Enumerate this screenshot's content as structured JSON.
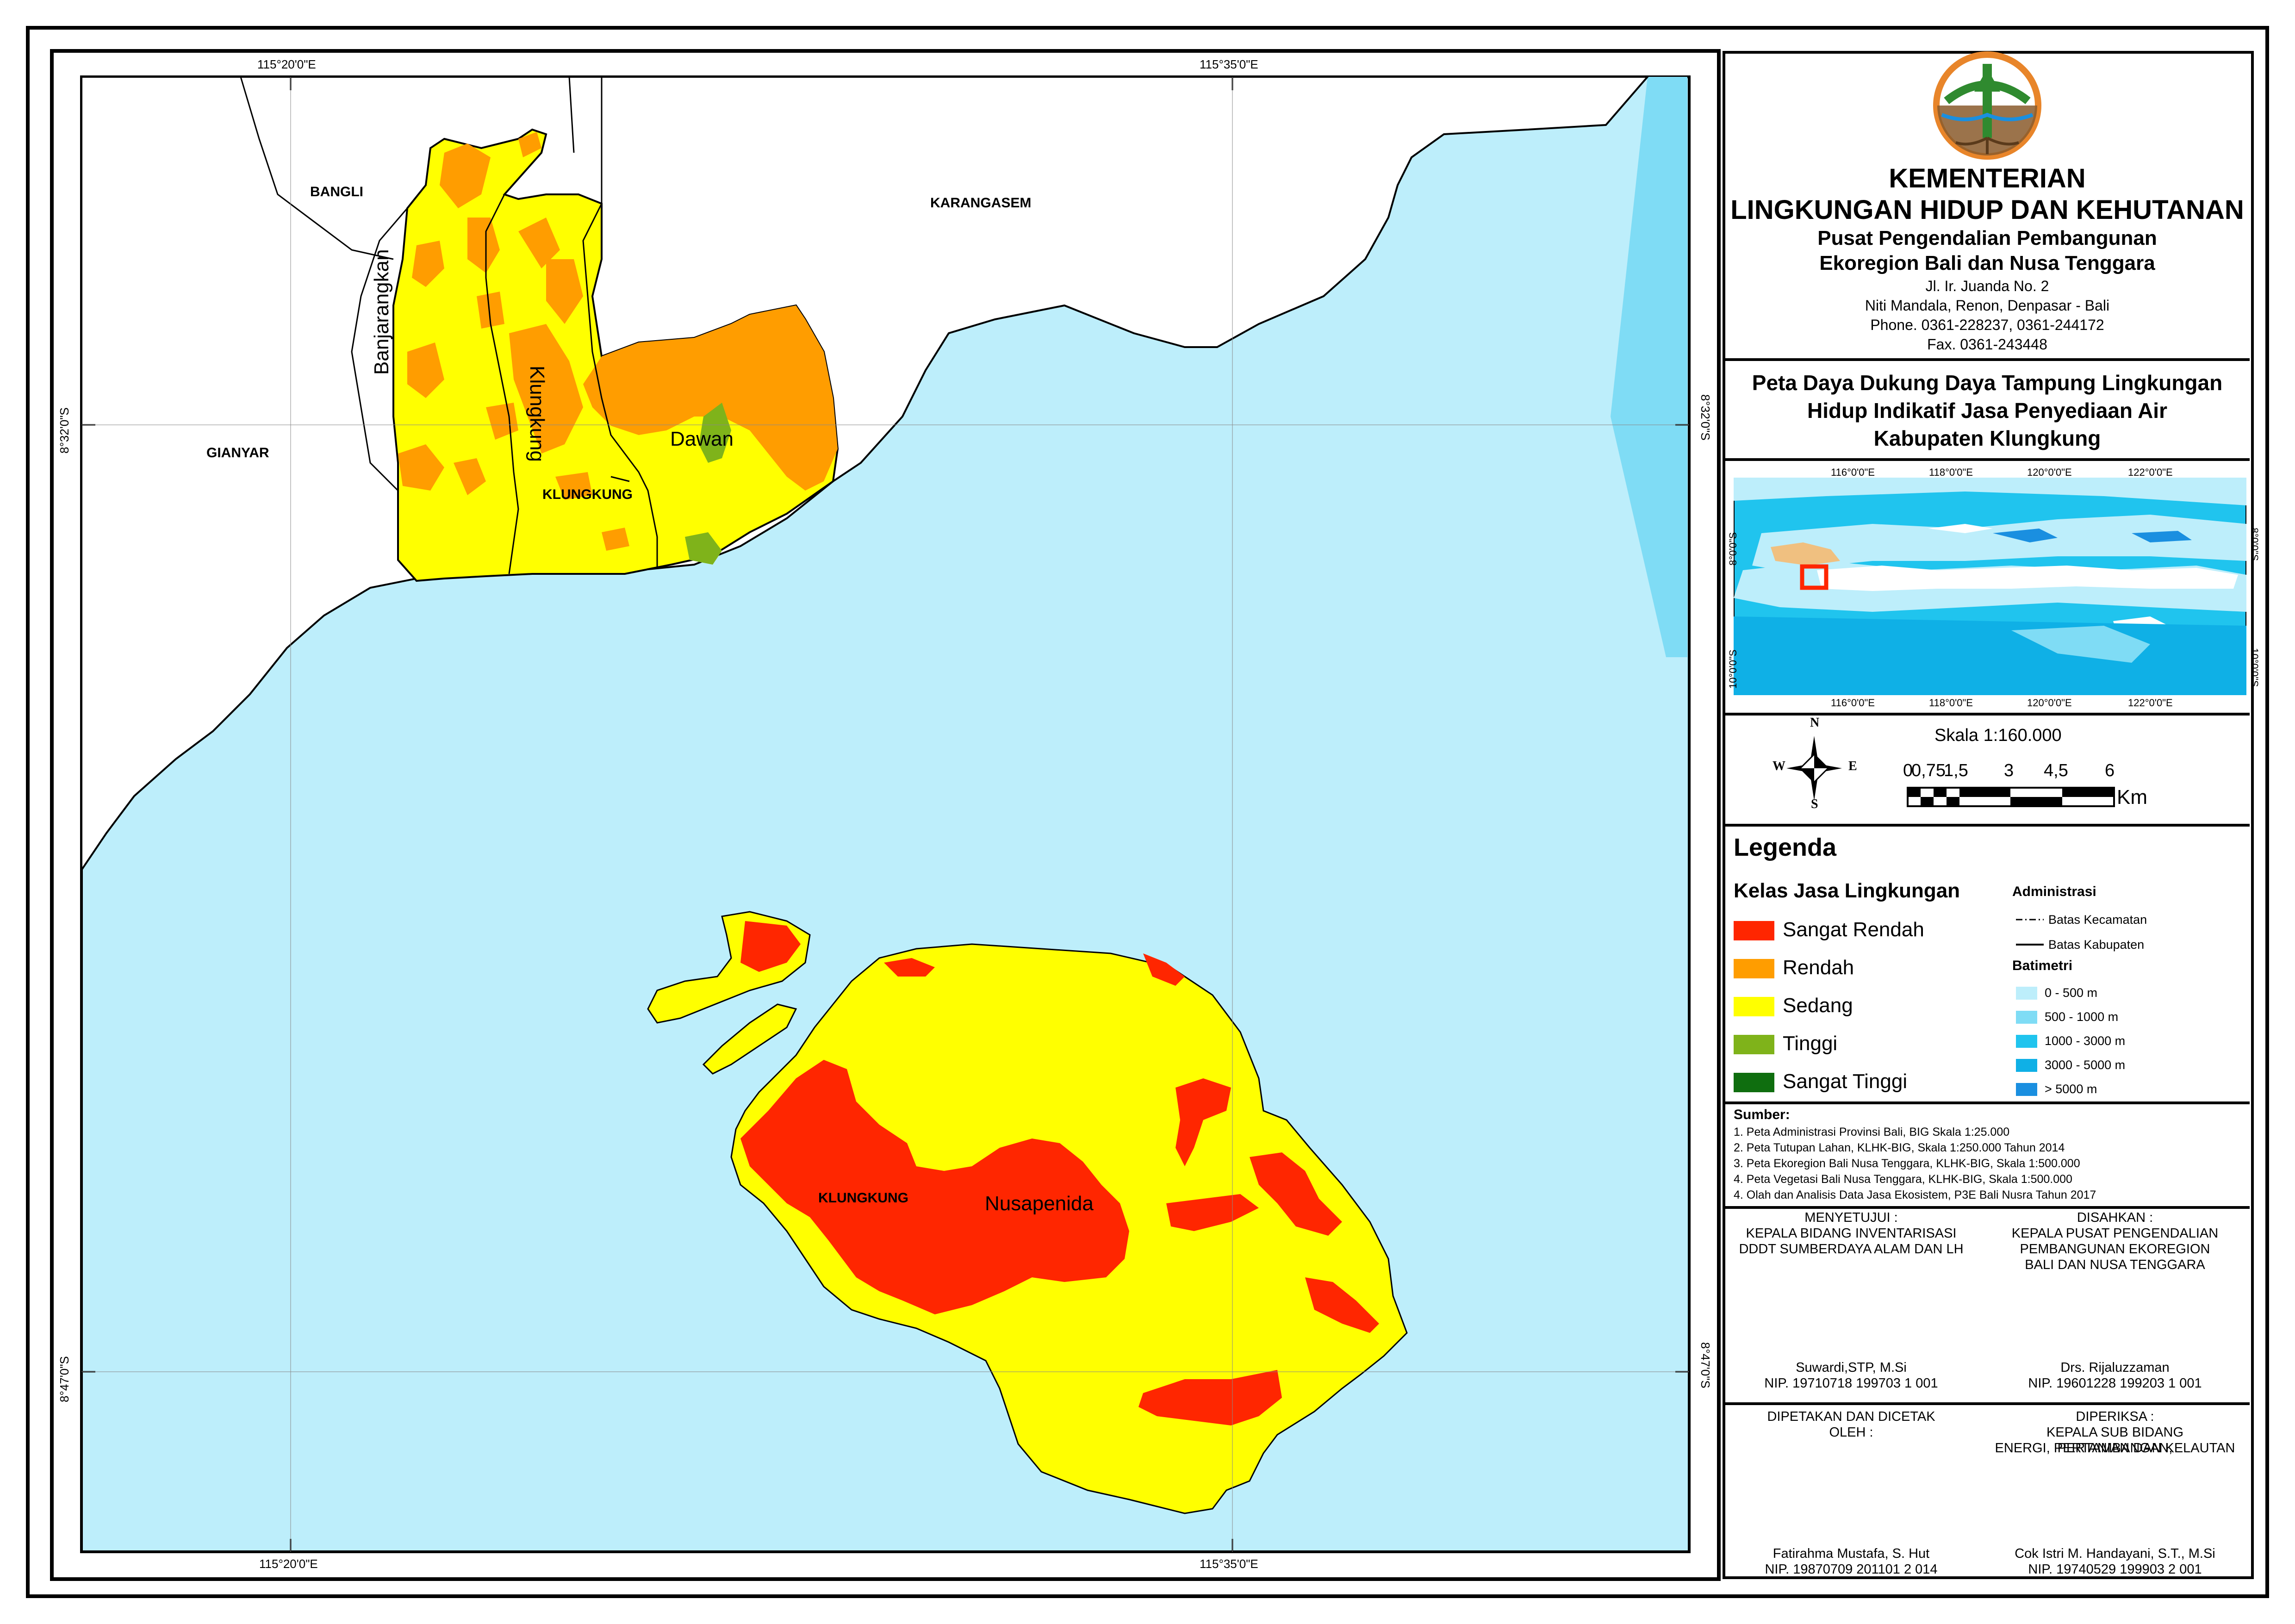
{
  "map": {
    "place_labels": {
      "bangli": "BANGLI",
      "karangasem": "KARANGASEM",
      "gianyar": "GIANYAR",
      "klungkung_north": "KLUNGKUNG",
      "klungkung_south": "KLUNGKUNG",
      "banjarangkan": "Banjarangkan",
      "klungkung_kec": "Klungkung",
      "dawan": "Dawan",
      "nusapenida": "Nusapenida"
    },
    "grid_labels": {
      "lon_left": "115°20'0\"E",
      "lon_right": "115°35'0\"E",
      "lat_top": "8°32'0\"S",
      "lat_bottom": "8°47'0\"S"
    }
  },
  "header": {
    "ministry_line1": "KEMENTERIAN",
    "ministry_line2": "LINGKUNGAN HIDUP DAN KEHUTANAN",
    "center_line1": "Pusat Pengendalian Pembangunan",
    "center_line2": "Ekoregion Bali dan Nusa Tenggara",
    "address1": "Jl. Ir. Juanda No. 2",
    "address2": "Niti Mandala, Renon, Denpasar - Bali",
    "phone": "Phone. 0361-228237, 0361-244172",
    "fax": "Fax. 0361-243448"
  },
  "title": {
    "line1": "Peta Daya Dukung Daya Tampung Lingkungan",
    "line2": "Hidup Indikatif Jasa Penyediaan Air",
    "line3": "Kabupaten Klungkung"
  },
  "inset": {
    "top_labels": [
      "116°0'0\"E",
      "118°0'0\"E",
      "120°0'0\"E",
      "122°0'0\"E"
    ],
    "bottom_labels": [
      "116°0'0\"E",
      "118°0'0\"E",
      "120°0'0\"E",
      "122°0'0\"E"
    ],
    "left_labels": [
      "8°0'0\"S",
      "10°0'0\"S"
    ],
    "right_labels": [
      "8°0'0\"S",
      "10°0'0\"S"
    ]
  },
  "scale": {
    "text": "Skala 1:160.000",
    "ticks": [
      "0",
      "0,75",
      "1,5",
      "3",
      "4,5",
      "6"
    ],
    "unit": "Km"
  },
  "compass": {
    "n": "N",
    "s": "S",
    "e": "E",
    "w": "W"
  },
  "legend": {
    "title": "Legenda",
    "class_title": "Kelas Jasa Lingkungan",
    "classes": [
      {
        "label": "Sangat Rendah",
        "color": "#ff2600"
      },
      {
        "label": "Rendah",
        "color": "#ff9d00"
      },
      {
        "label": "Sedang",
        "color": "#ffff00"
      },
      {
        "label": "Tinggi",
        "color": "#7fb31a"
      },
      {
        "label": "Sangat Tinggi",
        "color": "#0f6e0f"
      }
    ],
    "admin_title": "Administrasi",
    "admin_items": [
      "Batas Kecamatan",
      "Batas Kabupaten"
    ],
    "bathy_title": "Batimetri",
    "bathy_items": [
      {
        "label": "0 - 500 m",
        "color": "#bdeefb"
      },
      {
        "label": "500 - 1000 m",
        "color": "#7fdcf5"
      },
      {
        "label": "1000 - 3000 m",
        "color": "#20c4ee"
      },
      {
        "label": "3000 - 5000 m",
        "color": "#0fb0e6"
      },
      {
        "label": "> 5000 m",
        "color": "#1a8fe0"
      }
    ]
  },
  "sources": {
    "title": "Sumber:",
    "items": [
      "1. Peta Administrasi Provinsi Bali, BIG Skala 1:25.000",
      "2. Peta Tutupan Lahan, KLHK-BIG, Skala 1:250.000 Tahun 2014",
      "3. Peta Ekoregion Bali Nusa Tenggara, KLHK-BIG, Skala 1:500.000",
      "4. Peta Vegetasi Bali Nusa Tenggara, KLHK-BIG, Skala 1:500.000",
      "4. Olah dan Analisis Data Jasa Ekosistem, P3E Bali Nusra Tahun 2017"
    ]
  },
  "signatures": {
    "approved_label": "MENYETUJUI :",
    "approved_role1": "KEPALA BIDANG INVENTARISASI",
    "approved_role2": "DDDT SUMBERDAYA ALAM DAN LH",
    "approved_name": "Suwardi,STP, M.Si",
    "approved_nip": "NIP. 19710718 199703 1 001",
    "ratified_label": "DISAHKAN :",
    "ratified_role1": "KEPALA PUSAT PENGENDALIAN",
    "ratified_role2": "PEMBANGUNAN EKOREGION",
    "ratified_role3": "BALI DAN NUSA TENGGARA",
    "ratified_name": "Drs. Rijaluzzaman",
    "ratified_nip": "NIP. 19601228 199203 1 001",
    "mapped_label1": "DIPETAKAN DAN DICETAK",
    "mapped_label2": "OLEH :",
    "mapped_name": "Fatirahma Mustafa, S. Hut",
    "mapped_nip": "NIP. 19870709 201101 2 014",
    "checked_label": "DIPERIKSA :",
    "checked_role1": "KEPALA SUB BIDANG PERTAMBANGAN,",
    "checked_role2": "ENERGI, PERTANIAN DAN KELAUTAN",
    "checked_name": "Cok Istri M. Handayani, S.T., M.Si",
    "checked_nip": "NIP. 19740529 199903 2 001"
  }
}
